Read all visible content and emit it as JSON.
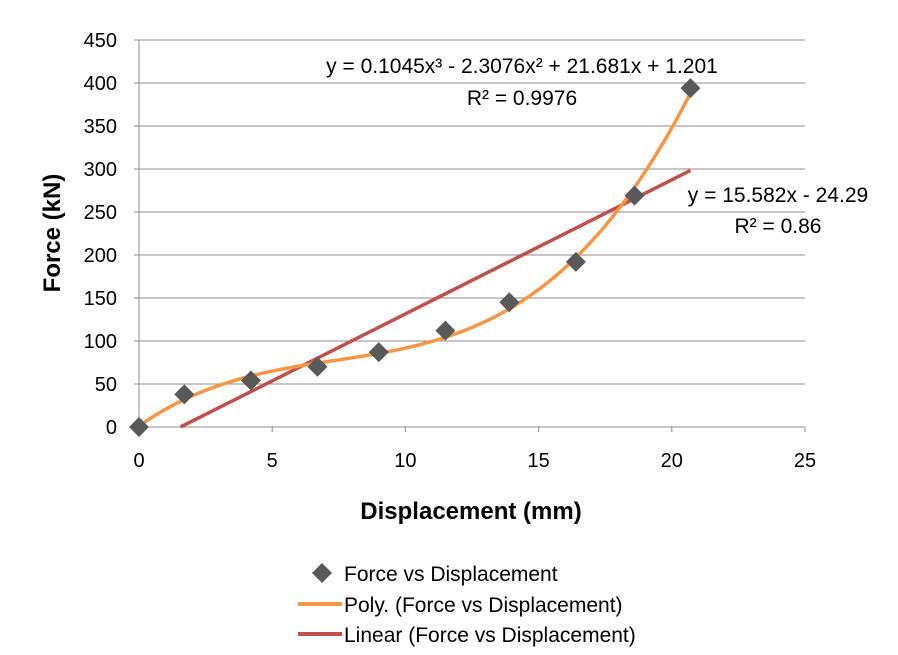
{
  "chart_data": {
    "type": "scatter",
    "xlabel": "Displacement (mm)",
    "ylabel": "Force (kN)",
    "xlim": [
      0,
      25
    ],
    "ylim": [
      0,
      450
    ],
    "x_ticks": [
      "0",
      "5",
      "10",
      "15",
      "20",
      "25"
    ],
    "y_ticks": [
      "0",
      "50",
      "100",
      "150",
      "200",
      "250",
      "300",
      "350",
      "400",
      "450"
    ],
    "grid": "horizontal",
    "legend_position": "bottom",
    "series": [
      {
        "name": "Force vs Displacement",
        "kind": "scatter",
        "marker": "diamond",
        "color": "#595959",
        "x": [
          0,
          1.7,
          4.2,
          6.7,
          9.0,
          11.5,
          13.9,
          16.4,
          18.6,
          20.7
        ],
        "y": [
          0,
          38,
          54,
          70,
          87,
          112,
          145,
          192,
          269,
          394
        ]
      },
      {
        "name": "Poly. (Force vs Displacement)",
        "kind": "trendline",
        "fit": "polynomial",
        "coefficients": [
          0.1045,
          -2.3076,
          21.681,
          1.201
        ],
        "x_range": [
          0,
          20.7
        ],
        "color": "#F79646"
      },
      {
        "name": "Linear (Force vs Displacement)",
        "kind": "trendline",
        "fit": "linear",
        "coefficients": [
          15.582,
          -24.29
        ],
        "x_range": [
          1.56,
          20.7
        ],
        "color": "#C0504D"
      }
    ],
    "annotations": {
      "poly_equation": "y = 0.1045x³ - 2.3076x² + 21.681x + 1.201",
      "poly_r2": "R² = 0.9976",
      "linear_equation": "y = 15.582x - 24.29",
      "linear_r2": "R² = 0.86"
    }
  }
}
